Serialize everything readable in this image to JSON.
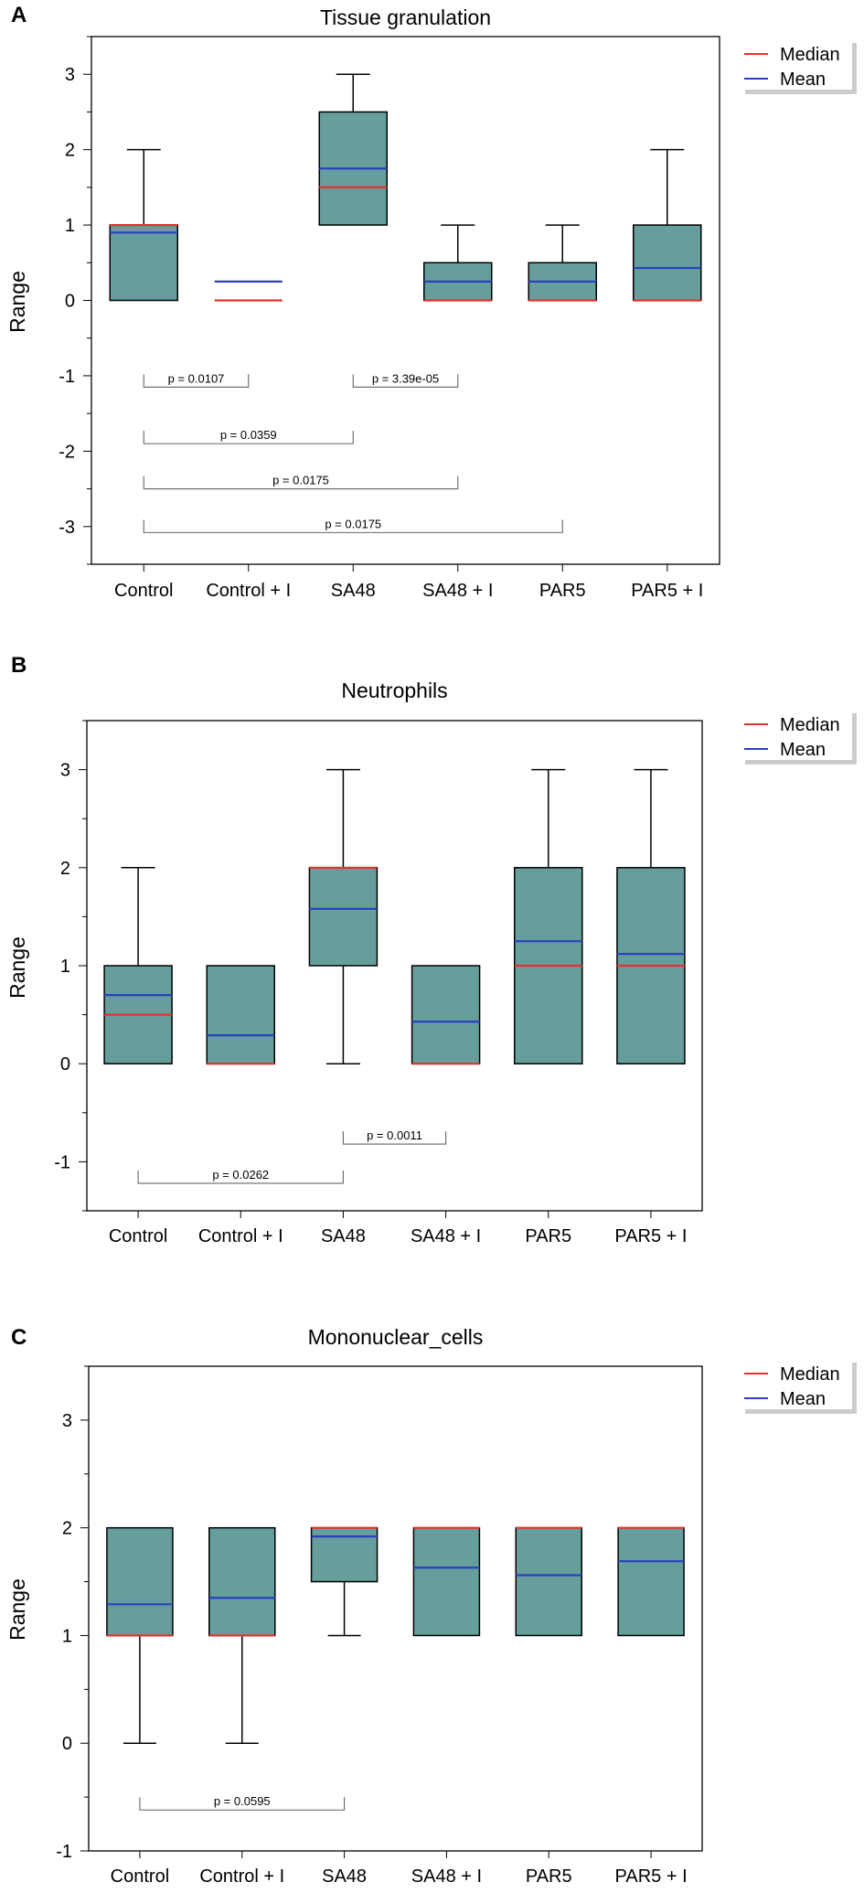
{
  "legend_labels": {
    "median": "Median",
    "mean": "Mean"
  },
  "colors": {
    "box_fill": "#669e9c",
    "median": "#e8302a",
    "mean": "#2b3fbf",
    "whisker": "#000000",
    "bracket": "#666666",
    "legend_shadow": "#cccccc"
  },
  "chart_data": [
    {
      "panel": "A",
      "type": "box",
      "title": "Tissue granulation",
      "ylabel": "Range",
      "xlabel": "",
      "ylim": [
        -3.5,
        3.5
      ],
      "yticks": [
        "3",
        "2",
        "1",
        "0",
        "-1",
        "-2",
        "-3"
      ],
      "categories": [
        "Control",
        "Control + I",
        "SA48",
        "SA48 + I",
        "PAR5",
        "PAR5 + I"
      ],
      "boxes": [
        {
          "min": 0,
          "q1": 0,
          "median": 1,
          "q3": 1,
          "max": 2,
          "mean": 0.9
        },
        {
          "min": 0,
          "q1": 0,
          "median": 0,
          "q3": 0,
          "max": 0,
          "mean": 0.25
        },
        {
          "min": 1,
          "q1": 1,
          "median": 1.5,
          "q3": 2.5,
          "max": 3,
          "mean": 1.75
        },
        {
          "min": 0,
          "q1": 0,
          "median": 0,
          "q3": 0.5,
          "max": 1,
          "mean": 0.25
        },
        {
          "min": 0,
          "q1": 0,
          "median": 0,
          "q3": 0.5,
          "max": 1,
          "mean": 0.25
        },
        {
          "min": 0,
          "q1": 0,
          "median": 0,
          "q3": 1,
          "max": 2,
          "mean": 0.43
        }
      ],
      "comparisons": [
        {
          "from": 0,
          "to": 1,
          "y": -1.15,
          "label": "p = 0.0107"
        },
        {
          "from": 2,
          "to": 3,
          "y": -1.15,
          "label": "p = 3.39e-05"
        },
        {
          "from": 0,
          "to": 2,
          "y": -1.9,
          "label": "p = 0.0359"
        },
        {
          "from": 0,
          "to": 3,
          "y": -2.5,
          "label": "p = 0.0175"
        },
        {
          "from": 0,
          "to": 4,
          "y": -3.08,
          "label": "p = 0.0175"
        }
      ]
    },
    {
      "panel": "B",
      "type": "box",
      "title": "Neutrophils",
      "ylabel": "Range",
      "xlabel": "",
      "ylim": [
        -1.5,
        3.5
      ],
      "yticks": [
        "3",
        "2",
        "1",
        "0",
        "-1"
      ],
      "categories": [
        "Control",
        "Control + I",
        "SA48",
        "SA48 + I",
        "PAR5",
        "PAR5 + I"
      ],
      "boxes": [
        {
          "min": 0,
          "q1": 0,
          "median": 0.5,
          "q3": 1,
          "max": 2,
          "mean": 0.7
        },
        {
          "min": 0,
          "q1": 0,
          "median": 0,
          "q3": 1,
          "max": 1,
          "mean": 0.29
        },
        {
          "min": 0,
          "q1": 1,
          "median": 2,
          "q3": 2,
          "max": 3,
          "mean": 1.58
        },
        {
          "min": 0,
          "q1": 0,
          "median": 0,
          "q3": 1,
          "max": 1,
          "mean": 0.43
        },
        {
          "min": 0,
          "q1": 0,
          "median": 1,
          "q3": 2,
          "max": 3,
          "mean": 1.25
        },
        {
          "min": 0,
          "q1": 0,
          "median": 1,
          "q3": 2,
          "max": 3,
          "mean": 1.12
        }
      ],
      "comparisons": [
        {
          "from": 2,
          "to": 3,
          "y": -0.82,
          "label": "p = 0.0011"
        },
        {
          "from": 0,
          "to": 2,
          "y": -1.22,
          "label": "p = 0.0262"
        }
      ]
    },
    {
      "panel": "C",
      "type": "box",
      "title": "Mononuclear_cells",
      "ylabel": "Range",
      "xlabel": "",
      "ylim": [
        -1,
        3.5
      ],
      "yticks": [
        "3",
        "2",
        "1",
        "0",
        "-1"
      ],
      "categories": [
        "Control",
        "Control + I",
        "SA48",
        "SA48 + I",
        "PAR5",
        "PAR5 + I"
      ],
      "boxes": [
        {
          "min": 0,
          "q1": 1,
          "median": 1,
          "q3": 2,
          "max": 2,
          "mean": 1.29
        },
        {
          "min": 0,
          "q1": 1,
          "median": 1,
          "q3": 2,
          "max": 2,
          "mean": 1.35
        },
        {
          "min": 1,
          "q1": 1.5,
          "median": 2,
          "q3": 2,
          "max": 2,
          "mean": 1.92
        },
        {
          "min": 1,
          "q1": 1,
          "median": 2,
          "q3": 2,
          "max": 2,
          "mean": 1.63
        },
        {
          "min": 1,
          "q1": 1,
          "median": 2,
          "q3": 2,
          "max": 2,
          "mean": 1.56
        },
        {
          "min": 1,
          "q1": 1,
          "median": 2,
          "q3": 2,
          "max": 2,
          "mean": 1.69
        }
      ],
      "comparisons": [
        {
          "from": 0,
          "to": 2,
          "y": -0.62,
          "label": "p = 0.0595"
        }
      ]
    }
  ]
}
